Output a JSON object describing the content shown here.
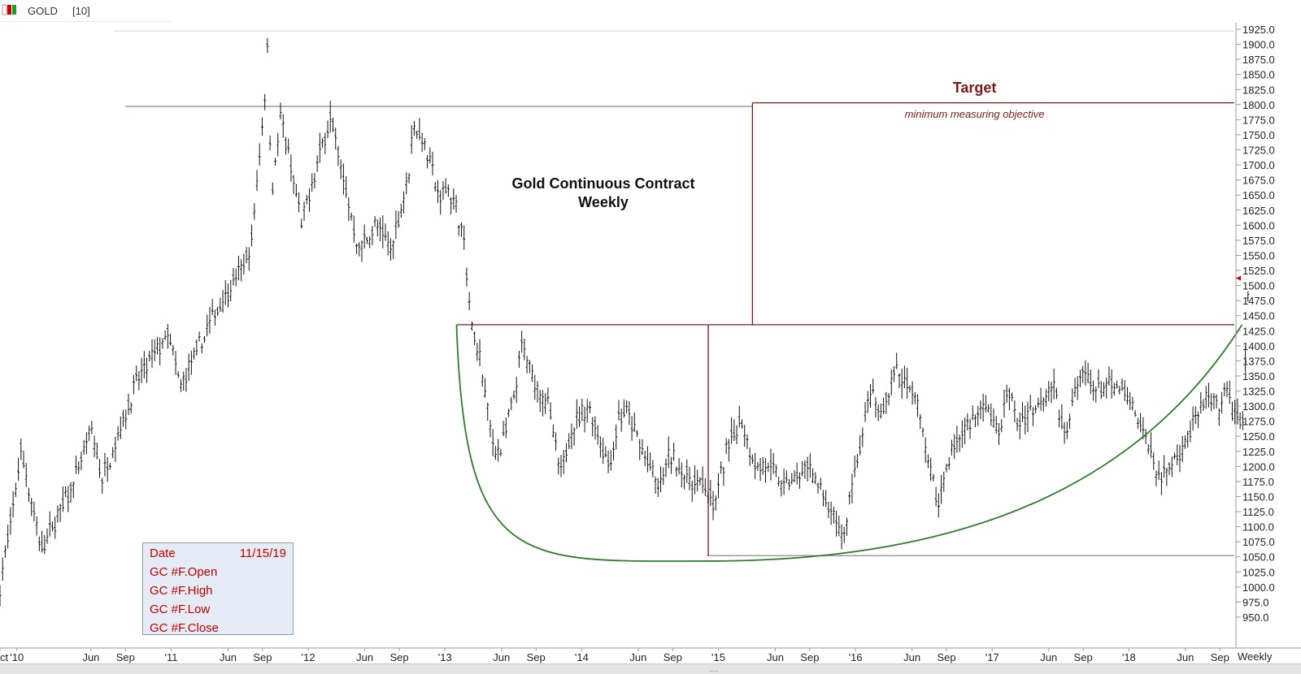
{
  "header": {
    "symbol": "GOLD",
    "interval": "[10]"
  },
  "chart_data": {
    "type": "ohlc",
    "title": "Gold Continuous Contract",
    "subtitle": "Weekly",
    "y_ticks": [
      950,
      975,
      1000,
      1025,
      1050,
      1075,
      1100,
      1125,
      1150,
      1175,
      1200,
      1225,
      1250,
      1275,
      1300,
      1325,
      1350,
      1375,
      1400,
      1425,
      1450,
      1475,
      1500,
      1525,
      1550,
      1575,
      1600,
      1625,
      1650,
      1675,
      1700,
      1725,
      1750,
      1775,
      1800,
      1825,
      1850,
      1875,
      1900,
      1925
    ],
    "ylim": [
      935,
      1935
    ],
    "x_start": "2010-10-01",
    "x_end": "2019-10-03",
    "x_ticks": [
      {
        "label": "Oct",
        "date": "2010-10-01"
      },
      {
        "label": "'10",
        "date": "2010-11-15"
      },
      {
        "label": "Jun",
        "date": "2011-06-01"
      },
      {
        "label": "Sep",
        "date": "2011-09-01"
      },
      {
        "label": "'11",
        "date": "2012-01-01"
      },
      {
        "label": "Jun",
        "date": "2012-06-01"
      },
      {
        "label": "Sep",
        "date": "2012-09-01"
      },
      {
        "label": "'12",
        "date": "2013-01-01"
      },
      {
        "label": "Jun",
        "date": "2013-06-01"
      },
      {
        "label": "Sep",
        "date": "2013-09-01"
      },
      {
        "label": "'13",
        "date": "2014-01-01"
      },
      {
        "label": "Jun",
        "date": "2014-06-01"
      },
      {
        "label": "Sep",
        "date": "2014-09-01"
      },
      {
        "label": "'14",
        "date": "2015-01-01"
      },
      {
        "label": "Jun",
        "date": "2015-06-01"
      },
      {
        "label": "Sep",
        "date": "2015-09-01"
      },
      {
        "label": "'15",
        "date": "2016-01-01"
      },
      {
        "label": "Jun",
        "date": "2016-06-01"
      },
      {
        "label": "Sep",
        "date": "2016-09-01"
      },
      {
        "label": "'16",
        "date": "2017-01-01"
      },
      {
        "label": "Jun",
        "date": "2017-06-01"
      },
      {
        "label": "Sep",
        "date": "2017-09-01"
      },
      {
        "label": "'17",
        "date": "2018-01-01"
      },
      {
        "label": "Jun",
        "date": "2018-06-01"
      },
      {
        "label": "Sep",
        "date": "2018-09-01"
      },
      {
        "label": "'18",
        "date": "2019-01-01"
      },
      {
        "label": "Jun",
        "date": "2019-06-01"
      },
      {
        "label": "Sep",
        "date": "2019-09-01"
      }
    ],
    "interval_label": "Weekly",
    "price_anchors": [
      [
        "2010-10-01",
        1000
      ],
      [
        "2010-11-10",
        1150
      ],
      [
        "2010-11-25",
        1230
      ],
      [
        "2011-01-20",
        1060
      ],
      [
        "2011-04-20",
        1180
      ],
      [
        "2011-06-01",
        1260
      ],
      [
        "2011-07-01",
        1180
      ],
      [
        "2011-10-01",
        1340
      ],
      [
        "2011-12-25",
        1420
      ],
      [
        "2012-01-25",
        1330
      ],
      [
        "2012-05-01",
        1460
      ],
      [
        "2012-07-01",
        1520
      ],
      [
        "2012-08-01",
        1560
      ],
      [
        "2012-09-05",
        1800
      ],
      [
        "2012-09-15",
        1900
      ],
      [
        "2012-09-25",
        1650
      ],
      [
        "2012-10-20",
        1780
      ],
      [
        "2012-12-15",
        1600
      ],
      [
        "2013-02-10",
        1740
      ],
      [
        "2013-03-01",
        1780
      ],
      [
        "2013-04-10",
        1660
      ],
      [
        "2013-05-15",
        1560
      ],
      [
        "2013-07-01",
        1600
      ],
      [
        "2013-08-10",
        1560
      ],
      [
        "2013-09-25",
        1680
      ],
      [
        "2013-10-10",
        1770
      ],
      [
        "2013-11-10",
        1730
      ],
      [
        "2013-12-20",
        1640
      ],
      [
        "2014-01-05",
        1670
      ],
      [
        "2014-02-15",
        1600
      ],
      [
        "2014-03-15",
        1420
      ],
      [
        "2014-04-01",
        1390
      ],
      [
        "2014-05-10",
        1230
      ],
      [
        "2014-06-01",
        1230
      ],
      [
        "2014-07-10",
        1330
      ],
      [
        "2014-07-25",
        1400
      ],
      [
        "2014-08-20",
        1350
      ],
      [
        "2014-10-05",
        1300
      ],
      [
        "2014-11-05",
        1180
      ],
      [
        "2014-12-01",
        1260
      ],
      [
        "2015-01-20",
        1300
      ],
      [
        "2015-03-15",
        1200
      ],
      [
        "2015-04-10",
        1280
      ],
      [
        "2015-05-01",
        1290
      ],
      [
        "2015-05-20",
        1260
      ],
      [
        "2015-07-01",
        1200
      ],
      [
        "2015-07-25",
        1160
      ],
      [
        "2015-08-25",
        1220
      ],
      [
        "2015-10-10",
        1180
      ],
      [
        "2015-11-25",
        1170
      ],
      [
        "2015-12-20",
        1130
      ],
      [
        "2016-01-20",
        1220
      ],
      [
        "2016-03-01",
        1280
      ],
      [
        "2016-04-10",
        1200
      ],
      [
        "2016-05-15",
        1200
      ],
      [
        "2016-06-20",
        1170
      ],
      [
        "2016-08-01",
        1180
      ],
      [
        "2016-09-01",
        1200
      ],
      [
        "2016-10-20",
        1130
      ],
      [
        "2016-12-01",
        1080
      ],
      [
        "2016-12-20",
        1160
      ],
      [
        "2017-02-10",
        1320
      ],
      [
        "2017-03-10",
        1280
      ],
      [
        "2017-04-15",
        1360
      ],
      [
        "2017-05-10",
        1340
      ],
      [
        "2017-06-20",
        1300
      ],
      [
        "2017-07-15",
        1200
      ],
      [
        "2017-08-10",
        1140
      ],
      [
        "2017-09-10",
        1220
      ],
      [
        "2017-10-15",
        1260
      ],
      [
        "2017-11-15",
        1280
      ],
      [
        "2017-12-20",
        1300
      ],
      [
        "2018-01-15",
        1250
      ],
      [
        "2018-02-15",
        1330
      ],
      [
        "2018-03-10",
        1270
      ],
      [
        "2018-04-10",
        1290
      ],
      [
        "2018-05-10",
        1310
      ],
      [
        "2018-06-15",
        1340
      ],
      [
        "2018-07-10",
        1250
      ],
      [
        "2018-08-05",
        1310
      ],
      [
        "2018-09-01",
        1360
      ],
      [
        "2018-09-25",
        1330
      ],
      [
        "2018-11-01",
        1330
      ],
      [
        "2018-12-10",
        1330
      ],
      [
        "2019-01-15",
        1290
      ],
      [
        "2019-02-20",
        1240
      ],
      [
        "2019-03-25",
        1180
      ],
      [
        "2019-05-01",
        1210
      ],
      [
        "2019-06-01",
        1240
      ],
      [
        "2019-06-20",
        1270
      ],
      [
        "2019-07-25",
        1310
      ],
      [
        "2019-08-20",
        1300
      ],
      [
        "2019-09-05",
        1290
      ],
      [
        "2019-09-25",
        1350
      ],
      [
        "2019-10-01",
        1280
      ],
      [
        "2019-11-01",
        1280
      ],
      [
        "2019-11-15",
        1470
      ]
    ],
    "lines": [
      {
        "name": "neckline",
        "y": 1435,
        "x_from": "2014-02-01",
        "x_to": "2019-12-31",
        "color": "#7b1a1a"
      },
      {
        "name": "target-line",
        "y": 1803,
        "x_from": "2016-04-01",
        "x_to": "2019-12-31",
        "color": "#7b1a1a"
      },
      {
        "name": "prior-high-line",
        "y": 1797,
        "x_from": "2011-09-01",
        "x_to": "2016-04-01",
        "color": "#7aa07a"
      },
      {
        "name": "low-line",
        "y": 1052,
        "x_from": "2015-12-01",
        "x_to": "2019-12-31",
        "color": "#888888"
      },
      {
        "name": "ath-line",
        "y": 1922,
        "x_from": "2011-08-01",
        "x_to": "2019-12-31",
        "color": "#dcdcdc"
      }
    ],
    "measure": {
      "left_x": "2015-12-05",
      "left_y_top": 1435,
      "left_y_bottom": 1052,
      "right_x": "2016-04-01",
      "right_y_bottom": 1435,
      "right_y_top": 1803,
      "color": "#7b1a1a"
    },
    "bowl": {
      "left_x": "2014-02-01",
      "left_y": 1435,
      "bottom_x": "2015-12-05",
      "bottom_y": 1043,
      "right_x": "2019-10-30",
      "right_y": 1435,
      "color": "#2e7d2e"
    },
    "annotations": {
      "target": {
        "label": "Target",
        "date": "2017-11-15",
        "y": 1820
      },
      "objective": {
        "label": "minimum measuring objective",
        "date": "2017-11-15",
        "y": 1778
      }
    },
    "last_price_marker": 1512,
    "colors": {
      "bars": "#111111",
      "neckline": "#7b1a1a",
      "bowl": "#2e7d2e",
      "info_text": "#c00000"
    }
  },
  "info_box": {
    "rows": [
      {
        "label": "Date",
        "value": "11/15/19"
      },
      {
        "label": "GC #F.Open",
        "value": ""
      },
      {
        "label": "GC #F.High",
        "value": ""
      },
      {
        "label": "GC #F.Low",
        "value": ""
      },
      {
        "label": "GC #F.Close",
        "value": ""
      }
    ]
  },
  "bottom_handle": "....."
}
